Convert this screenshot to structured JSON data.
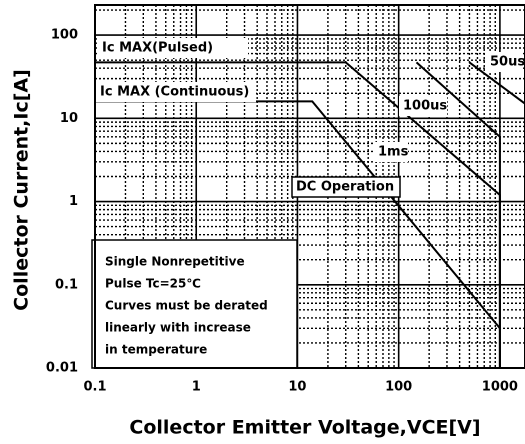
{
  "chart_data": {
    "type": "line",
    "x_label": "Collector Emitter Voltage,VCE[V]",
    "y_label": "Collector Current,Ic[A]",
    "log_x": true,
    "log_y": true,
    "grid": true,
    "xlim": [
      0.1,
      1770
    ],
    "ylim": [
      0.01,
      230
    ],
    "xticks": [
      0.1,
      1,
      10,
      100,
      1000
    ],
    "yticks": [
      0.01,
      0.1,
      1,
      10,
      100
    ],
    "series": [
      {
        "name": "Ic MAX(Pulsed)",
        "color": "#000000",
        "x": [
          0.1,
          30
        ],
        "values": [
          47,
          47
        ]
      },
      {
        "name": "DC Operation",
        "color": "#000000",
        "x": [
          0.1,
          14,
          1000
        ],
        "values": [
          16,
          16,
          0.03
        ]
      },
      {
        "name": "1ms",
        "color": "#000000",
        "x": [
          30,
          1000,
          1000
        ],
        "values": [
          47,
          1.2,
          0.01
        ]
      },
      {
        "name": "100us",
        "color": "#000000",
        "x": [
          150,
          1000,
          1000
        ],
        "values": [
          47,
          6,
          0.01
        ]
      },
      {
        "name": "50us",
        "color": "#000000",
        "x": [
          500,
          1770
        ],
        "values": [
          47,
          15
        ]
      }
    ],
    "annotations": [
      "Ic MAX(Pulsed)",
      "Ic MAX (Continuous)",
      "50us",
      "100us",
      "1ms",
      "DC Operation"
    ],
    "note": [
      "Single Nonrepetitive",
      "Pulse Tc=25℃",
      "Curves must be derated",
      "linearly with increase",
      "in temperature"
    ]
  }
}
